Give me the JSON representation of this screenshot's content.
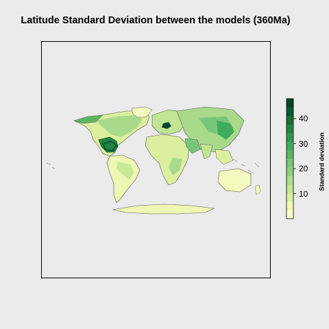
{
  "title": "Latitude Standard Deviation between the models (360Ma)",
  "legend": {
    "title": "Standard deviation",
    "min": 0,
    "max": 48,
    "ticks": [
      10,
      20,
      30,
      40
    ],
    "colors": [
      "#ffffcc",
      "#f1f9b5",
      "#d9f0a3",
      "#c1e594",
      "#addd8e",
      "#8ccf7c",
      "#78c679",
      "#5cb661",
      "#41ab5d",
      "#2f9650",
      "#238443",
      "#1a6e37",
      "#005a32",
      "#004529"
    ]
  }
}
